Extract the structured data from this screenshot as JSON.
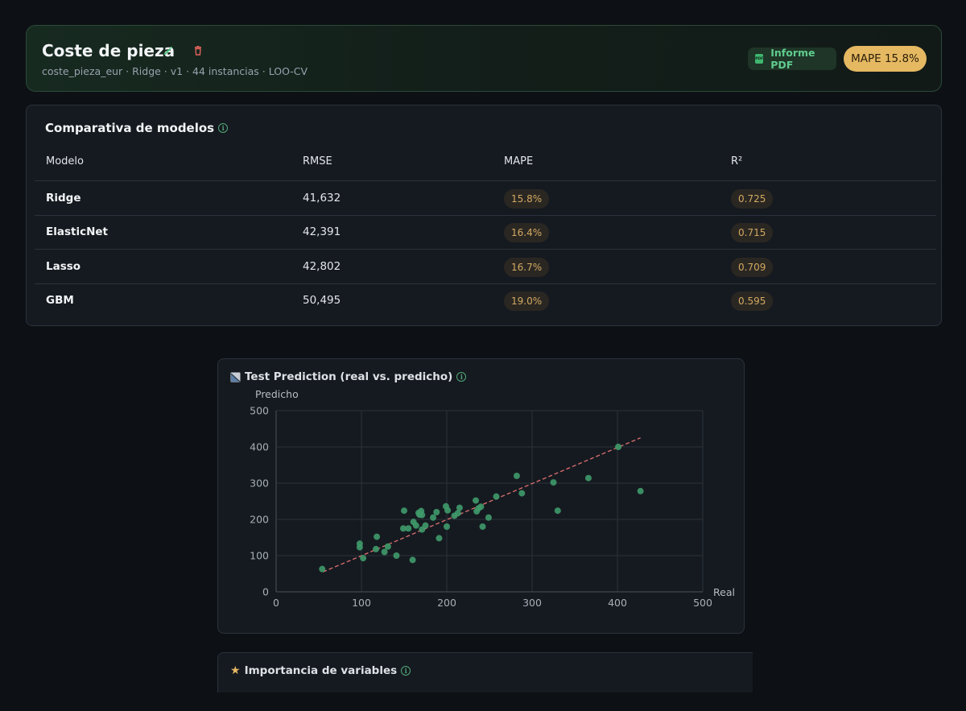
{
  "header": {
    "title": "Coste de pieza",
    "subtitle": "coste_pieza_eur · Ridge · v1 · 44 instancias · LOO-CV",
    "pdf_label": "Informe PDF",
    "pdf_icon_text": "PDF",
    "mape_badge": "MAPE 15.8%"
  },
  "models": {
    "title": "Comparativa de modelos",
    "columns": [
      "Modelo",
      "RMSE",
      "MAPE",
      "R²"
    ],
    "rows": [
      {
        "model": "Ridge",
        "rmse": "41,632",
        "mape": "15.8%",
        "r2": "0.725"
      },
      {
        "model": "ElasticNet",
        "rmse": "42,391",
        "mape": "16.4%",
        "r2": "0.715"
      },
      {
        "model": "Lasso",
        "rmse": "42,802",
        "mape": "16.7%",
        "r2": "0.709"
      },
      {
        "model": "GBM",
        "rmse": "50,495",
        "mape": "19.0%",
        "r2": "0.595"
      }
    ]
  },
  "importance": {
    "title": "Importancia de variables"
  },
  "colors": {
    "accent": "#5fcb8d",
    "badge": "#e5b862",
    "points": "#3f9a6a",
    "fit_line": "#e07070"
  },
  "chart_data": {
    "type": "scatter",
    "title": "Test Prediction (real vs. predicho)",
    "xlabel": "Real",
    "ylabel": "Predicho",
    "xlim": [
      0,
      500
    ],
    "ylim": [
      0,
      500
    ],
    "xticks": [
      0,
      100,
      200,
      300,
      400,
      500
    ],
    "yticks": [
      0,
      100,
      200,
      300,
      400,
      500
    ],
    "grid": true,
    "fit_line": [
      [
        55,
        55
      ],
      [
        427,
        425
      ]
    ],
    "points": [
      [
        54,
        63
      ],
      [
        98,
        133
      ],
      [
        98,
        123
      ],
      [
        102,
        93
      ],
      [
        117,
        118
      ],
      [
        118,
        152
      ],
      [
        127,
        110
      ],
      [
        131,
        125
      ],
      [
        141,
        100
      ],
      [
        149,
        175
      ],
      [
        150,
        224
      ],
      [
        155,
        175
      ],
      [
        160,
        88
      ],
      [
        161,
        193
      ],
      [
        164,
        183
      ],
      [
        167,
        218
      ],
      [
        168,
        213
      ],
      [
        170,
        223
      ],
      [
        171,
        212
      ],
      [
        171,
        172
      ],
      [
        175,
        183
      ],
      [
        184,
        205
      ],
      [
        188,
        220
      ],
      [
        191,
        148
      ],
      [
        199,
        236
      ],
      [
        200,
        180
      ],
      [
        201,
        225
      ],
      [
        209,
        210
      ],
      [
        213,
        217
      ],
      [
        215,
        232
      ],
      [
        234,
        252
      ],
      [
        235,
        222
      ],
      [
        237,
        230
      ],
      [
        240,
        235
      ],
      [
        242,
        180
      ],
      [
        249,
        205
      ],
      [
        258,
        263
      ],
      [
        282,
        320
      ],
      [
        288,
        272
      ],
      [
        325,
        302
      ],
      [
        330,
        224
      ],
      [
        366,
        314
      ],
      [
        401,
        400
      ],
      [
        427,
        278
      ]
    ]
  }
}
